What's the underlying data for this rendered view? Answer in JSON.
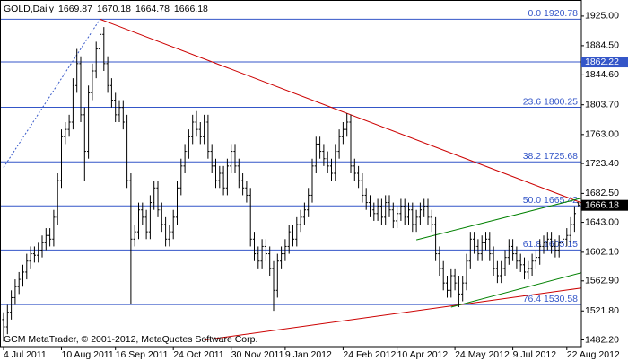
{
  "chart_data": {
    "type": "ohlc",
    "title": "GOLD,Daily",
    "footer": "GCM MetaTrader, © 2001-2012, MetaQuotes Software Corp.",
    "categories": [
      "4 Jul 2011",
      null,
      null,
      null,
      null,
      null,
      null,
      null,
      null,
      null,
      null,
      null,
      null,
      null,
      null,
      "10 Aug 2011",
      null,
      null,
      null,
      null,
      null,
      null,
      null,
      null,
      null,
      null,
      null,
      null,
      null,
      "16 Sep 2011",
      null,
      null,
      null,
      null,
      null,
      null,
      null,
      null,
      null,
      null,
      null,
      null,
      null,
      null,
      "24 Oct 2011",
      null,
      null,
      null,
      null,
      null,
      null,
      null,
      null,
      null,
      null,
      null,
      null,
      null,
      null,
      "30 Nov 2011",
      null,
      null,
      null,
      null,
      null,
      null,
      null,
      null,
      null,
      null,
      null,
      null,
      null,
      "9 Jan 2012",
      null,
      null,
      null,
      null,
      null,
      null,
      null,
      null,
      null,
      null,
      null,
      null,
      null,
      null,
      "24 Feb 2012",
      null,
      null,
      null,
      null,
      null,
      null,
      null,
      null,
      null,
      null,
      null,
      null,
      null,
      "10 Apr 2012",
      null,
      null,
      null,
      null,
      null,
      null,
      null,
      null,
      null,
      null,
      null,
      null,
      null,
      null,
      "24 May 2012",
      null,
      null,
      null,
      null,
      null,
      null,
      null,
      null,
      null,
      null,
      null,
      null,
      null,
      null,
      "9 Jul 2012",
      null,
      null,
      null,
      null,
      null,
      null,
      null,
      null,
      null,
      null,
      null,
      null,
      null,
      "22 Aug 2012",
      null,
      null,
      null
    ],
    "open": [
      1510,
      1500,
      1520,
      1540,
      1555,
      1565,
      1575,
      1590,
      1600,
      1598,
      1605,
      1615,
      1625,
      1620,
      1650,
      1700,
      1760,
      1770,
      1780,
      1830,
      1860,
      1790,
      1740,
      1820,
      1850,
      1880,
      1900,
      1860,
      1830,
      1810,
      1790,
      1800,
      1780,
      1700,
      1620,
      1630,
      1660,
      1650,
      1630,
      1670,
      1690,
      1660,
      1640,
      1620,
      1630,
      1650,
      1690,
      1720,
      1740,
      1760,
      1780,
      1770,
      1760,
      1780,
      1740,
      1720,
      1700,
      1710,
      1690,
      1720,
      1740,
      1720,
      1700,
      1690,
      1680,
      1620,
      1600,
      1590,
      1610,
      1600,
      1580,
      1550,
      1590,
      1600,
      1610,
      1630,
      1620,
      1640,
      1650,
      1660,
      1680,
      1720,
      1750,
      1740,
      1730,
      1720,
      1710,
      1740,
      1760,
      1770,
      1780,
      1720,
      1710,
      1700,
      1680,
      1670,
      1660,
      1655,
      1665,
      1650,
      1670,
      1660,
      1645,
      1655,
      1665,
      1650,
      1660,
      1640,
      1650,
      1660,
      1665,
      1650,
      1640,
      1600,
      1580,
      1560,
      1550,
      1570,
      1560,
      1545,
      1560,
      1590,
      1620,
      1610,
      1600,
      1615,
      1620,
      1600,
      1580,
      1570,
      1580,
      1595,
      1610,
      1600,
      1590,
      1585,
      1575,
      1580,
      1590,
      1595,
      1610,
      1615,
      1620,
      1610,
      1605,
      1615,
      1620,
      1625,
      1640,
      1669.87
    ],
    "high": [
      1520,
      1530,
      1550,
      1565,
      1575,
      1585,
      1600,
      1610,
      1610,
      1615,
      1625,
      1635,
      1635,
      1660,
      1710,
      1770,
      1780,
      1790,
      1840,
      1880,
      1870,
      1800,
      1830,
      1860,
      1890,
      1920.78,
      1910,
      1870,
      1840,
      1820,
      1810,
      1810,
      1790,
      1710,
      1640,
      1670,
      1670,
      1660,
      1680,
      1700,
      1700,
      1670,
      1650,
      1640,
      1660,
      1700,
      1730,
      1750,
      1770,
      1790,
      1795,
      1780,
      1790,
      1790,
      1750,
      1730,
      1720,
      1720,
      1730,
      1750,
      1750,
      1730,
      1710,
      1700,
      1690,
      1630,
      1610,
      1620,
      1620,
      1610,
      1590,
      1600,
      1610,
      1620,
      1640,
      1640,
      1650,
      1660,
      1670,
      1690,
      1730,
      1760,
      1760,
      1750,
      1740,
      1730,
      1750,
      1770,
      1780,
      1792,
      1790,
      1730,
      1720,
      1710,
      1690,
      1680,
      1670,
      1675,
      1675,
      1680,
      1680,
      1670,
      1665,
      1675,
      1675,
      1670,
      1670,
      1660,
      1670,
      1675,
      1675,
      1660,
      1650,
      1610,
      1590,
      1570,
      1580,
      1580,
      1570,
      1570,
      1600,
      1630,
      1630,
      1620,
      1625,
      1630,
      1630,
      1610,
      1590,
      1590,
      1605,
      1620,
      1620,
      1610,
      1600,
      1595,
      1590,
      1600,
      1605,
      1620,
      1625,
      1630,
      1630,
      1620,
      1625,
      1630,
      1635,
      1650,
      1665,
      1670.18
    ],
    "low": [
      1480,
      1490,
      1510,
      1530,
      1545,
      1555,
      1565,
      1580,
      1588,
      1588,
      1595,
      1605,
      1610,
      1610,
      1640,
      1690,
      1750,
      1760,
      1770,
      1820,
      1780,
      1700,
      1730,
      1810,
      1840,
      1870,
      1850,
      1820,
      1800,
      1780,
      1780,
      1770,
      1690,
      1532,
      1610,
      1620,
      1640,
      1620,
      1620,
      1660,
      1650,
      1630,
      1610,
      1610,
      1620,
      1640,
      1680,
      1710,
      1730,
      1750,
      1760,
      1750,
      1750,
      1730,
      1710,
      1690,
      1690,
      1680,
      1680,
      1710,
      1710,
      1690,
      1680,
      1670,
      1610,
      1590,
      1580,
      1580,
      1590,
      1570,
      1522,
      1540,
      1580,
      1590,
      1600,
      1610,
      1610,
      1630,
      1640,
      1650,
      1670,
      1710,
      1730,
      1720,
      1710,
      1700,
      1700,
      1730,
      1750,
      1760,
      1710,
      1700,
      1690,
      1670,
      1660,
      1650,
      1645,
      1645,
      1640,
      1640,
      1650,
      1635,
      1635,
      1645,
      1640,
      1640,
      1630,
      1630,
      1640,
      1650,
      1640,
      1630,
      1590,
      1570,
      1550,
      1540,
      1540,
      1550,
      1527,
      1535,
      1550,
      1580,
      1600,
      1590,
      1590,
      1605,
      1590,
      1570,
      1560,
      1560,
      1570,
      1585,
      1590,
      1580,
      1575,
      1565,
      1565,
      1570,
      1580,
      1585,
      1600,
      1605,
      1600,
      1595,
      1595,
      1605,
      1610,
      1615,
      1630,
      1664.78
    ],
    "close": [
      1500,
      1520,
      1540,
      1555,
      1565,
      1575,
      1590,
      1600,
      1598,
      1605,
      1615,
      1625,
      1620,
      1650,
      1700,
      1760,
      1770,
      1780,
      1830,
      1860,
      1790,
      1740,
      1820,
      1850,
      1880,
      1900,
      1860,
      1830,
      1810,
      1790,
      1800,
      1780,
      1700,
      1620,
      1630,
      1660,
      1650,
      1630,
      1670,
      1690,
      1660,
      1640,
      1620,
      1630,
      1650,
      1690,
      1720,
      1740,
      1760,
      1780,
      1770,
      1760,
      1780,
      1740,
      1720,
      1700,
      1710,
      1690,
      1720,
      1740,
      1720,
      1700,
      1690,
      1680,
      1620,
      1600,
      1590,
      1610,
      1600,
      1580,
      1550,
      1590,
      1600,
      1610,
      1630,
      1620,
      1640,
      1650,
      1660,
      1680,
      1720,
      1750,
      1740,
      1730,
      1720,
      1710,
      1740,
      1760,
      1770,
      1780,
      1720,
      1710,
      1700,
      1680,
      1670,
      1660,
      1655,
      1665,
      1650,
      1670,
      1660,
      1645,
      1655,
      1665,
      1650,
      1660,
      1640,
      1650,
      1660,
      1665,
      1650,
      1640,
      1600,
      1580,
      1560,
      1550,
      1570,
      1560,
      1545,
      1560,
      1590,
      1620,
      1610,
      1600,
      1615,
      1620,
      1600,
      1580,
      1570,
      1580,
      1595,
      1610,
      1600,
      1590,
      1585,
      1575,
      1580,
      1590,
      1595,
      1610,
      1615,
      1620,
      1610,
      1605,
      1615,
      1620,
      1625,
      1640,
      1655,
      1666.18
    ],
    "bar_color": "#000000",
    "ylim": [
      1473,
      1947
    ],
    "yticks": [
      {
        "value": 1925,
        "label": "1925.00"
      },
      {
        "value": 1884.5,
        "label": "1884.50"
      },
      {
        "value": 1844.6,
        "label": "1844.60"
      },
      {
        "value": 1803.7,
        "label": "1803.70"
      },
      {
        "value": 1763,
        "label": "1763.00"
      },
      {
        "value": 1723.4,
        "label": "1723.40"
      },
      {
        "value": 1682.5,
        "label": "1682.50"
      },
      {
        "value": 1643,
        "label": "1643.00"
      },
      {
        "value": 1602.1,
        "label": "1602.10"
      },
      {
        "value": 1562.9,
        "label": "1562.90"
      },
      {
        "value": 1521.8,
        "label": "1521.80"
      },
      {
        "value": 1482.2,
        "label": "1482.20"
      }
    ],
    "fib_color": "#3456c8",
    "fib_levels": [
      {
        "value": 1920.78,
        "label": "0.0 1920.78"
      },
      {
        "value": 1800.25,
        "label": "23.6 1800.25"
      },
      {
        "value": 1725.68,
        "label": "38.2 1725.68"
      },
      {
        "value": 1665.42,
        "label": "50.0 1665.42"
      },
      {
        "value": 1605.15,
        "label": "61.8 1605.15"
      },
      {
        "value": 1530.58,
        "label": "76.4 1530.58"
      }
    ],
    "price_lines": [
      1862.22
    ],
    "trendlines": [
      {
        "color": "#cc0000",
        "from": [
          25,
          1920.78
        ],
        "to": [
          90,
          1790
        ],
        "ray": true
      },
      {
        "color": "#cc0000",
        "from": [
          52,
          1482
        ],
        "to": [
          118,
          1530
        ],
        "ray": true
      },
      {
        "color": "#008000",
        "from": [
          107,
          1619
        ],
        "to": [
          149,
          1675
        ],
        "ray": true
      },
      {
        "color": "#008000",
        "from": [
          116,
          1527
        ],
        "to": [
          149,
          1573
        ],
        "ray": true
      },
      {
        "color": "#3456c8",
        "from": [
          0,
          1718
        ],
        "to": [
          25,
          1920.78
        ],
        "ray": false,
        "dashed": true
      }
    ]
  }
}
